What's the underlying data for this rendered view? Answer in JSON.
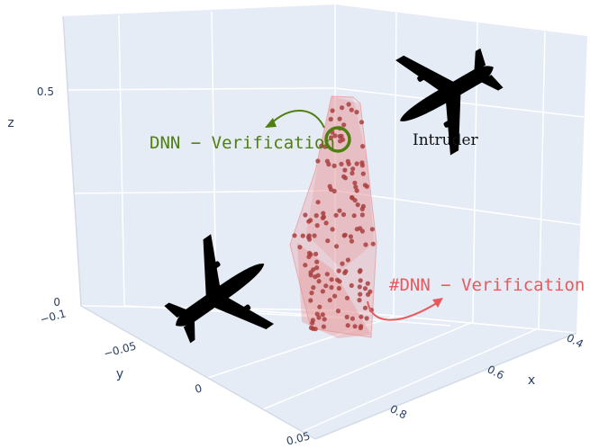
{
  "chart_data": {
    "type": "scatter",
    "subtype": "3d-scatter-with-hull",
    "axes": {
      "x": {
        "label": "x",
        "ticks": [
          "0.4",
          "0.6",
          "0.8"
        ]
      },
      "y": {
        "label": "y",
        "ticks": [
          "−0.1",
          "−0.05",
          "0",
          "0.05"
        ]
      },
      "z": {
        "label": "z",
        "ticks": [
          "0",
          "0.5"
        ]
      }
    },
    "grid": true,
    "colors": {
      "points": "#a8403f",
      "hull": "#e98a8a",
      "background": "#e5ecf6",
      "green": "#4f7f10",
      "red": "#e8595e"
    },
    "annotations": {
      "green": "DNN − Verification",
      "red": "#DNN − Verification",
      "intruder": "Intruder"
    }
  }
}
